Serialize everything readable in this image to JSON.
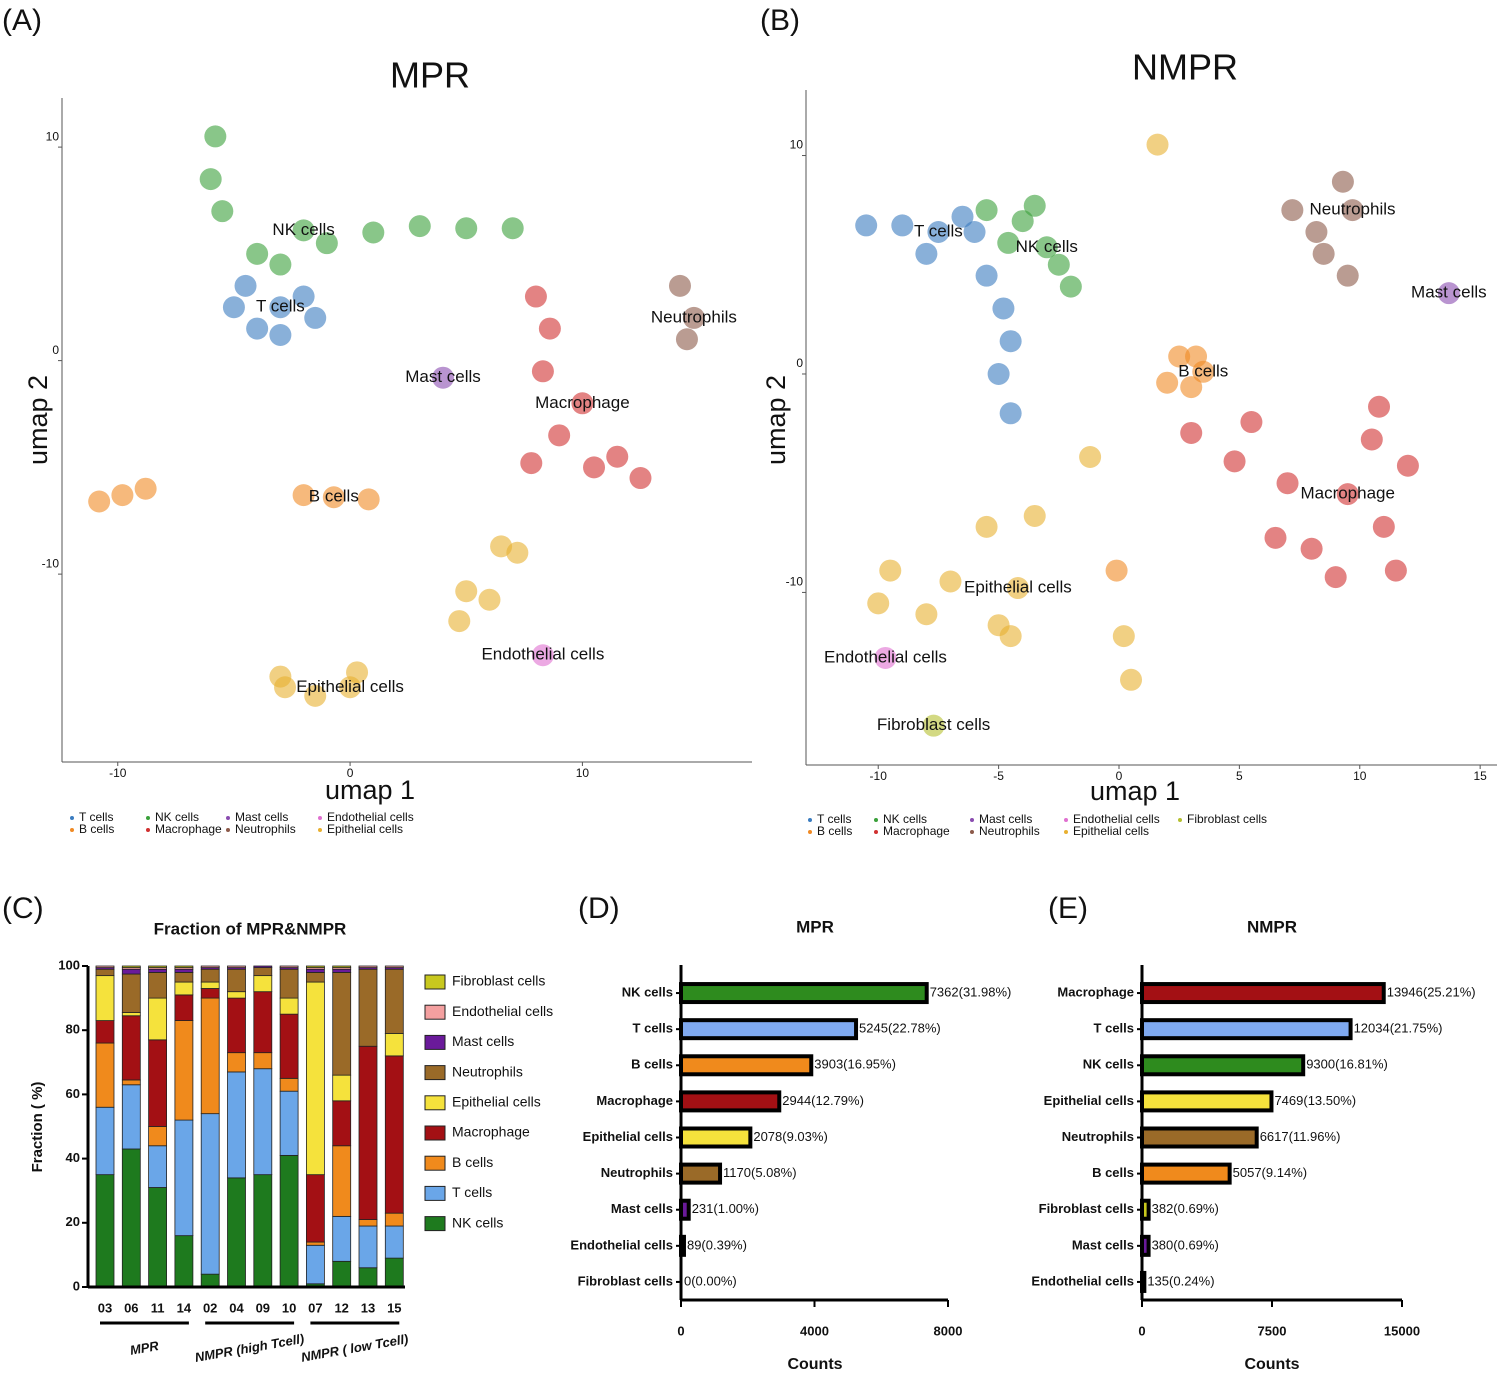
{
  "chart_data": [
    {
      "panel": "(A)",
      "type": "scatter",
      "title": "MPR",
      "x_label": "umap 1",
      "y_label": "umap 2",
      "xlim": [
        -12.4,
        17.3
      ],
      "ylim": [
        -18.8,
        12.3
      ],
      "xticks": [
        -10,
        0,
        10
      ],
      "yticks": [
        -10,
        0,
        10
      ],
      "series": [
        {
          "name": "T cells",
          "color": "#3a7cc0",
          "x": [
            -3,
            -4.5,
            -2,
            -4,
            -3,
            -1.5,
            -5
          ],
          "y": [
            2.5,
            3.5,
            3,
            1.5,
            1.2,
            2,
            2.5
          ]
        },
        {
          "name": "B cells",
          "color": "#f08a24",
          "x": [
            -0.7,
            -2,
            0.8,
            -9.8,
            -8.8,
            -10.8
          ],
          "y": [
            -6.4,
            -6.3,
            -6.5,
            -6.3,
            -6,
            -6.6
          ]
        },
        {
          "name": "NK cells",
          "color": "#3aa03a",
          "x": [
            -2,
            -4,
            -1,
            1,
            3,
            5,
            7,
            -5.8,
            -6,
            -3,
            -5.5
          ],
          "y": [
            6.1,
            5,
            5.5,
            6,
            6.3,
            6.2,
            6.2,
            10.5,
            8.5,
            4.5,
            7
          ]
        },
        {
          "name": "Macrophage",
          "color": "#d03030",
          "x": [
            10,
            8.6,
            8.3,
            9,
            10.5,
            12.5,
            7.8,
            8,
            11.5
          ],
          "y": [
            -2,
            1.5,
            -0.5,
            -3.5,
            -5,
            -5.5,
            -4.8,
            3,
            -4.5
          ]
        },
        {
          "name": "Mast cells",
          "color": "#8a4cb0",
          "x": [
            4
          ],
          "y": [
            -0.8
          ]
        },
        {
          "name": "Neutrophils",
          "color": "#8c5a4a",
          "x": [
            14.8,
            14.5,
            14.2
          ],
          "y": [
            2,
            1,
            3.5
          ]
        },
        {
          "name": "Endothelial cells",
          "color": "#e070d0",
          "x": [
            8.3
          ],
          "y": [
            -13.8
          ]
        },
        {
          "name": "Epithelial cells",
          "color": "#e8b030",
          "x": [
            0,
            -1.5,
            -3,
            -2.8,
            0.3,
            4.7,
            6,
            7.2,
            5,
            6.5
          ],
          "y": [
            -15.3,
            -15.7,
            -14.8,
            -15.3,
            -14.6,
            -12.2,
            -11.2,
            -9,
            -10.8,
            -8.7
          ]
        }
      ]
    },
    {
      "panel": "(B)",
      "type": "scatter",
      "title": "NMPR",
      "x_label": "umap 1",
      "y_label": "umap 2",
      "xlim": [
        -13,
        15.7
      ],
      "ylim": [
        -17.9,
        13
      ],
      "xticks": [
        -10,
        -5,
        0,
        5,
        10,
        15
      ],
      "yticks": [
        -10,
        0,
        10
      ],
      "series": [
        {
          "name": "T cells",
          "color": "#3a7cc0",
          "x": [
            -7.5,
            -10.5,
            -9,
            -8,
            -6,
            -5.5,
            -4.8,
            -4.5,
            -5,
            -4.5,
            -6.5
          ],
          "y": [
            6.5,
            6.8,
            6.8,
            5.5,
            6.5,
            4.5,
            3,
            1.5,
            0,
            -1.8,
            7.2
          ]
        },
        {
          "name": "B cells",
          "color": "#f08a24",
          "x": [
            3.5,
            2.5,
            3,
            2,
            3.2,
            -0.1
          ],
          "y": [
            0.1,
            0.8,
            -0.6,
            -0.4,
            0.8,
            -9
          ]
        },
        {
          "name": "NK cells",
          "color": "#3aa03a",
          "x": [
            -3,
            -4,
            -2.5,
            -3.5,
            -2,
            -4.6,
            -5.5
          ],
          "y": [
            5.8,
            7,
            5,
            7.7,
            4,
            6,
            7.5
          ]
        },
        {
          "name": "Macrophage",
          "color": "#d03030",
          "x": [
            9.5,
            7,
            4.8,
            10.5,
            11,
            9,
            6.5,
            12,
            10.8,
            5.5,
            3,
            8,
            11.5
          ],
          "y": [
            -5.5,
            -5,
            -4,
            -3,
            -7,
            -9.3,
            -7.5,
            -4.2,
            -1.5,
            -2.2,
            -2.7,
            -8,
            -9
          ]
        },
        {
          "name": "Mast cells",
          "color": "#8a4cb0",
          "x": [
            13.7
          ],
          "y": [
            3.7
          ]
        },
        {
          "name": "Neutrophils",
          "color": "#8c5a4a",
          "x": [
            9.7,
            8.5,
            9.3,
            7.2,
            9.5,
            8.2
          ],
          "y": [
            7.5,
            5.5,
            8.8,
            7.5,
            4.5,
            6.5
          ]
        },
        {
          "name": "Endothelial cells",
          "color": "#e070d0",
          "x": [
            -9.7
          ],
          "y": [
            -13
          ]
        },
        {
          "name": "Epithelial cells",
          "color": "#e8b030",
          "x": [
            -4.2,
            -7,
            -9.5,
            -5,
            -5.5,
            -3.5,
            -10,
            -4.5,
            0.5,
            0.2,
            1.6,
            -1.2,
            -8
          ],
          "y": [
            -9.8,
            -9.5,
            -9,
            -11.5,
            -7,
            -6.5,
            -10.5,
            -12,
            -14,
            -12,
            10.5,
            -3.8,
            -11
          ]
        },
        {
          "name": "Fibroblast cells",
          "color": "#b5c030",
          "x": [
            -7.7
          ],
          "y": [
            -16.1
          ]
        }
      ]
    },
    {
      "panel": "(C)",
      "type": "stackedbar",
      "title": "Fraction of MPR&NMPR",
      "y_label": "Fraction ( %)",
      "ylim": [
        0,
        100
      ],
      "yticks": [
        0,
        20,
        40,
        60,
        80,
        100
      ],
      "groups": [
        {
          "label": "MPR",
          "categories": [
            "03",
            "06",
            "11",
            "14"
          ]
        },
        {
          "label": "NMPR (high Tcell)",
          "categories": [
            "02",
            "04",
            "09",
            "10"
          ]
        },
        {
          "label": "NMPR ( low Tcell)",
          "categories": [
            "07",
            "12",
            "13",
            "15"
          ]
        }
      ],
      "series": [
        {
          "name": "NK cells",
          "color": "#1e7a1e",
          "values": [
            35,
            43,
            31,
            16,
            4,
            34,
            35,
            41,
            1,
            8,
            6,
            9
          ]
        },
        {
          "name": "T cells",
          "color": "#6aa6e8",
          "values": [
            21,
            20,
            13,
            36,
            50,
            33,
            33,
            20,
            12,
            14,
            13,
            10
          ]
        },
        {
          "name": "B cells",
          "color": "#f08a1c",
          "values": [
            20,
            1.5,
            6,
            31,
            36,
            6,
            5,
            4,
            1,
            22,
            2,
            4
          ]
        },
        {
          "name": "Macrophage",
          "color": "#a31014",
          "values": [
            7,
            20,
            27,
            8,
            3,
            17,
            19,
            20,
            21,
            14,
            54,
            49
          ]
        },
        {
          "name": "Epithelial cells",
          "color": "#f5e23c",
          "values": [
            14,
            1,
            13,
            4,
            2,
            2,
            5,
            5,
            60,
            8,
            0,
            7
          ]
        },
        {
          "name": "Neutrophils",
          "color": "#9a6a28",
          "values": [
            2,
            12,
            8,
            3,
            4,
            7,
            2.5,
            9,
            3,
            32,
            24,
            20
          ]
        },
        {
          "name": "Mast cells",
          "color": "#6a1a9a",
          "values": [
            0.5,
            1.5,
            1,
            1,
            0.5,
            0.5,
            0.5,
            0.5,
            1,
            1,
            0.5,
            0.5
          ]
        },
        {
          "name": "Endothelial cells",
          "color": "#f4a0a0",
          "values": [
            0.5,
            0.5,
            0.5,
            0.5,
            0.5,
            0.5,
            0,
            0.5,
            0.5,
            0.5,
            0.5,
            0.5
          ]
        },
        {
          "name": "Fibroblast cells",
          "color": "#c8c81e",
          "values": [
            0,
            0.5,
            0.5,
            0.5,
            0,
            0,
            0,
            0,
            0.5,
            0.5,
            0,
            0
          ]
        }
      ]
    },
    {
      "panel": "(D)",
      "type": "barh",
      "title": "MPR",
      "x_label": "Counts",
      "xlim": [
        0,
        8000
      ],
      "xticks": [
        0,
        4000,
        8000
      ],
      "categories": [
        "NK cells",
        "T cells",
        "B cells",
        "Macrophage",
        "Epithelial cells",
        "Neutrophils",
        "Mast cells",
        "Endothelial cells",
        "Fibroblast cells"
      ],
      "values": [
        7362,
        5245,
        3903,
        2944,
        2078,
        1170,
        231,
        89,
        0
      ],
      "value_labels": [
        "7362(31.98%)",
        "5245(22.78%)",
        "3903(16.95%)",
        "2944(12.79%)",
        "2078(9.03%)",
        "1170(5.08%)",
        "231(1.00%)",
        "89(0.39%)",
        "0(0.00%)"
      ],
      "colors": [
        "#2e8b1e",
        "#7fa9f0",
        "#f08a1c",
        "#a31014",
        "#f5e23c",
        "#9a6a28",
        "#6a1a9a",
        "#f4a0a0",
        "#c8c81e"
      ]
    },
    {
      "panel": "(E)",
      "type": "barh",
      "title": "NMPR",
      "x_label": "Counts",
      "xlim": [
        0,
        15000
      ],
      "xticks": [
        0,
        7500,
        15000
      ],
      "categories": [
        "Macrophage",
        "T cells",
        "NK cells",
        "Epithelial cells",
        "Neutrophils",
        "B cells",
        "Fibroblast cells",
        "Mast cells",
        "Endothelial cells"
      ],
      "values": [
        13946,
        12034,
        9300,
        7469,
        6617,
        5057,
        382,
        380,
        135
      ],
      "value_labels": [
        "13946(25.21%)",
        "12034(21.75%)",
        "9300(16.81%)",
        "7469(13.50%)",
        "6617(11.96%)",
        "5057(9.14%)",
        "382(0.69%)",
        "380(0.69%)",
        "135(0.24%)"
      ],
      "colors": [
        "#a31014",
        "#7fa9f0",
        "#2e8b1e",
        "#f5e23c",
        "#9a6a28",
        "#f08a1c",
        "#c8c81e",
        "#6a1a9a",
        "#f4a0a0"
      ]
    }
  ]
}
